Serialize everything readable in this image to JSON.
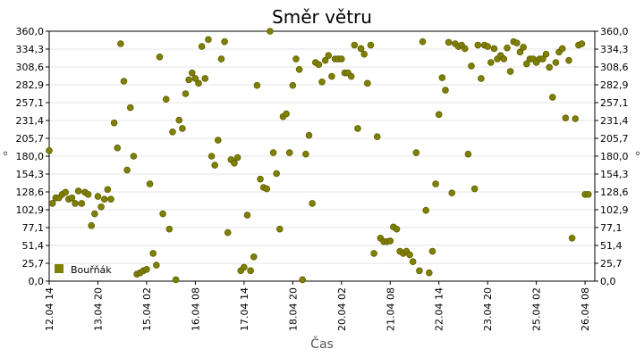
{
  "chart_data": {
    "type": "scatter",
    "title": "Směr větru",
    "xlabel": "Čas",
    "ylabel": "°",
    "ylim": [
      0,
      360
    ],
    "y_ticks": [
      "0,0",
      "25,7",
      "51,4",
      "77,1",
      "102,9",
      "128,6",
      "154,3",
      "180,0",
      "205,7",
      "231,4",
      "257,1",
      "282,9",
      "308,6",
      "334,3",
      "360,0"
    ],
    "x_axis": {
      "type": "time",
      "start": "2008-04-12T14:00",
      "end": "2008-04-26T14:00"
    },
    "x_ticks": [
      "12.04 14",
      "13.04 20",
      "15.04 02",
      "16.04 08",
      "17.04 14",
      "18.04 20",
      "20.04 02",
      "21.04 08",
      "22.04 14",
      "23.04 20",
      "25.04 02",
      "26.04 08"
    ],
    "legend": {
      "position": "bottom-left",
      "items": [
        "Bouřňák"
      ]
    },
    "grid": true,
    "series": [
      {
        "name": "Bouřňák",
        "color": "#808000",
        "points": [
          [
            "2008-04-12T14:00",
            188
          ],
          [
            "2008-04-12T16:00",
            112
          ],
          [
            "2008-04-12T18:00",
            120
          ],
          [
            "2008-04-12T20:00",
            120
          ],
          [
            "2008-04-12T22:00",
            125
          ],
          [
            "2008-04-13T00:00",
            128
          ],
          [
            "2008-04-13T02:00",
            118
          ],
          [
            "2008-04-13T04:00",
            120
          ],
          [
            "2008-04-13T06:00",
            112
          ],
          [
            "2008-04-13T08:00",
            130
          ],
          [
            "2008-04-13T10:00",
            112
          ],
          [
            "2008-04-13T12:00",
            128
          ],
          [
            "2008-04-13T14:00",
            125
          ],
          [
            "2008-04-13T16:00",
            80
          ],
          [
            "2008-04-13T18:00",
            97
          ],
          [
            "2008-04-13T20:00",
            122
          ],
          [
            "2008-04-13T22:00",
            107
          ],
          [
            "2008-04-14T00:00",
            118
          ],
          [
            "2008-04-14T02:00",
            132
          ],
          [
            "2008-04-14T04:00",
            118
          ],
          [
            "2008-04-14T06:00",
            228
          ],
          [
            "2008-04-14T08:00",
            192
          ],
          [
            "2008-04-14T10:00",
            342
          ],
          [
            "2008-04-14T12:00",
            288
          ],
          [
            "2008-04-14T14:00",
            160
          ],
          [
            "2008-04-14T16:00",
            250
          ],
          [
            "2008-04-14T18:00",
            180
          ],
          [
            "2008-04-14T20:00",
            10
          ],
          [
            "2008-04-14T22:00",
            12
          ],
          [
            "2008-04-15T00:00",
            15
          ],
          [
            "2008-04-15T02:00",
            17
          ],
          [
            "2008-04-15T04:00",
            140
          ],
          [
            "2008-04-15T06:00",
            40
          ],
          [
            "2008-04-15T08:00",
            23
          ],
          [
            "2008-04-15T10:00",
            323
          ],
          [
            "2008-04-15T12:00",
            97
          ],
          [
            "2008-04-15T14:00",
            262
          ],
          [
            "2008-04-15T16:00",
            75
          ],
          [
            "2008-04-15T18:00",
            215
          ],
          [
            "2008-04-15T20:00",
            2
          ],
          [
            "2008-04-15T22:00",
            232
          ],
          [
            "2008-04-16T00:00",
            220
          ],
          [
            "2008-04-16T02:00",
            270
          ],
          [
            "2008-04-16T04:00",
            290
          ],
          [
            "2008-04-16T06:00",
            300
          ],
          [
            "2008-04-16T08:00",
            292
          ],
          [
            "2008-04-16T10:00",
            285
          ],
          [
            "2008-04-16T12:00",
            338
          ],
          [
            "2008-04-16T14:00",
            292
          ],
          [
            "2008-04-16T16:00",
            348
          ],
          [
            "2008-04-16T18:00",
            180
          ],
          [
            "2008-04-16T20:00",
            167
          ],
          [
            "2008-04-16T22:00",
            203
          ],
          [
            "2008-04-17T00:00",
            320
          ],
          [
            "2008-04-17T02:00",
            345
          ],
          [
            "2008-04-17T04:00",
            70
          ],
          [
            "2008-04-17T06:00",
            175
          ],
          [
            "2008-04-17T08:00",
            170
          ],
          [
            "2008-04-17T10:00",
            178
          ],
          [
            "2008-04-17T12:00",
            15
          ],
          [
            "2008-04-17T14:00",
            20
          ],
          [
            "2008-04-17T16:00",
            95
          ],
          [
            "2008-04-17T18:00",
            15
          ],
          [
            "2008-04-17T20:00",
            35
          ],
          [
            "2008-04-17T22:00",
            282
          ],
          [
            "2008-04-18T00:00",
            147
          ],
          [
            "2008-04-18T02:00",
            135
          ],
          [
            "2008-04-18T04:00",
            133
          ],
          [
            "2008-04-18T06:00",
            360
          ],
          [
            "2008-04-18T08:00",
            185
          ],
          [
            "2008-04-18T10:00",
            155
          ],
          [
            "2008-04-18T12:00",
            75
          ],
          [
            "2008-04-18T14:00",
            237
          ],
          [
            "2008-04-18T16:00",
            241
          ],
          [
            "2008-04-18T18:00",
            185
          ],
          [
            "2008-04-18T20:00",
            282
          ],
          [
            "2008-04-18T22:00",
            320
          ],
          [
            "2008-04-19T00:00",
            305
          ],
          [
            "2008-04-19T02:00",
            2
          ],
          [
            "2008-04-19T04:00",
            183
          ],
          [
            "2008-04-19T06:00",
            210
          ],
          [
            "2008-04-19T08:00",
            112
          ],
          [
            "2008-04-19T10:00",
            315
          ],
          [
            "2008-04-19T12:00",
            312
          ],
          [
            "2008-04-19T14:00",
            287
          ],
          [
            "2008-04-19T16:00",
            318
          ],
          [
            "2008-04-19T18:00",
            325
          ],
          [
            "2008-04-19T20:00",
            295
          ],
          [
            "2008-04-19T22:00",
            320
          ],
          [
            "2008-04-20T00:00",
            320
          ],
          [
            "2008-04-20T02:00",
            320
          ],
          [
            "2008-04-20T04:00",
            300
          ],
          [
            "2008-04-20T06:00",
            300
          ],
          [
            "2008-04-20T08:00",
            295
          ],
          [
            "2008-04-20T10:00",
            340
          ],
          [
            "2008-04-20T12:00",
            220
          ],
          [
            "2008-04-20T14:00",
            335
          ],
          [
            "2008-04-20T16:00",
            327
          ],
          [
            "2008-04-20T18:00",
            285
          ],
          [
            "2008-04-20T20:00",
            340
          ],
          [
            "2008-04-20T22:00",
            40
          ],
          [
            "2008-04-21T00:00",
            208
          ],
          [
            "2008-04-21T02:00",
            62
          ],
          [
            "2008-04-21T04:00",
            57
          ],
          [
            "2008-04-21T06:00",
            57
          ],
          [
            "2008-04-21T08:00",
            58
          ],
          [
            "2008-04-21T10:00",
            78
          ],
          [
            "2008-04-21T12:00",
            75
          ],
          [
            "2008-04-21T14:00",
            43
          ],
          [
            "2008-04-21T16:00",
            40
          ],
          [
            "2008-04-21T18:00",
            43
          ],
          [
            "2008-04-21T20:00",
            38
          ],
          [
            "2008-04-21T22:00",
            28
          ],
          [
            "2008-04-22T00:00",
            185
          ],
          [
            "2008-04-22T02:00",
            15
          ],
          [
            "2008-04-22T04:00",
            345
          ],
          [
            "2008-04-22T06:00",
            102
          ],
          [
            "2008-04-22T08:00",
            12
          ],
          [
            "2008-04-22T10:00",
            43
          ],
          [
            "2008-04-22T12:00",
            140
          ],
          [
            "2008-04-22T14:00",
            240
          ],
          [
            "2008-04-22T16:00",
            293
          ],
          [
            "2008-04-22T18:00",
            275
          ],
          [
            "2008-04-22T20:00",
            344
          ],
          [
            "2008-04-22T22:00",
            127
          ],
          [
            "2008-04-23T00:00",
            342
          ],
          [
            "2008-04-23T02:00",
            338
          ],
          [
            "2008-04-23T04:00",
            340
          ],
          [
            "2008-04-23T06:00",
            335
          ],
          [
            "2008-04-23T08:00",
            183
          ],
          [
            "2008-04-23T10:00",
            310
          ],
          [
            "2008-04-23T12:00",
            133
          ],
          [
            "2008-04-23T14:00",
            340
          ],
          [
            "2008-04-23T16:00",
            292
          ],
          [
            "2008-04-23T18:00",
            340
          ],
          [
            "2008-04-23T20:00",
            338
          ],
          [
            "2008-04-23T22:00",
            315
          ],
          [
            "2008-04-24T00:00",
            335
          ],
          [
            "2008-04-24T02:00",
            320
          ],
          [
            "2008-04-24T04:00",
            325
          ],
          [
            "2008-04-24T06:00",
            320
          ],
          [
            "2008-04-24T08:00",
            336
          ],
          [
            "2008-04-24T10:00",
            302
          ],
          [
            "2008-04-24T12:00",
            345
          ],
          [
            "2008-04-24T14:00",
            343
          ],
          [
            "2008-04-24T16:00",
            330
          ],
          [
            "2008-04-24T18:00",
            337
          ],
          [
            "2008-04-24T20:00",
            313
          ],
          [
            "2008-04-24T22:00",
            320
          ],
          [
            "2008-04-25T00:00",
            320
          ],
          [
            "2008-04-25T02:00",
            315
          ],
          [
            "2008-04-25T04:00",
            320
          ],
          [
            "2008-04-25T06:00",
            320
          ],
          [
            "2008-04-25T08:00",
            327
          ],
          [
            "2008-04-25T10:00",
            308
          ],
          [
            "2008-04-25T12:00",
            265
          ],
          [
            "2008-04-25T14:00",
            315
          ],
          [
            "2008-04-25T16:00",
            330
          ],
          [
            "2008-04-25T18:00",
            335
          ],
          [
            "2008-04-25T20:00",
            235
          ],
          [
            "2008-04-25T22:00",
            318
          ],
          [
            "2008-04-26T00:00",
            62
          ],
          [
            "2008-04-26T02:00",
            234
          ],
          [
            "2008-04-26T04:00",
            340
          ],
          [
            "2008-04-26T06:00",
            342
          ],
          [
            "2008-04-26T08:00",
            125
          ],
          [
            "2008-04-26T10:00",
            125
          ]
        ]
      }
    ]
  }
}
